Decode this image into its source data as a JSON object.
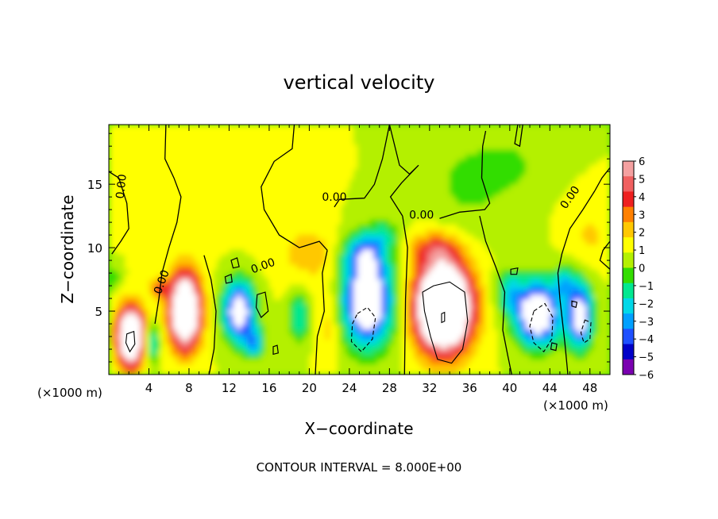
{
  "chart_data": {
    "type": "heatmap",
    "title": "vertical velocity",
    "xlabel": "X−coordinate",
    "ylabel": "Z−coordinate",
    "x_unit_left": "(×1000 m)",
    "x_unit_right": "(×1000 m)",
    "footer": "CONTOUR INTERVAL = 8.000E+00",
    "x_range": [
      0,
      50
    ],
    "y_range": [
      0,
      19.7
    ],
    "x_ticks": [
      4,
      8,
      12,
      16,
      20,
      24,
      28,
      32,
      36,
      40,
      44,
      48
    ],
    "y_ticks": [
      5,
      10,
      15
    ],
    "colorbar": {
      "levels": [
        6,
        5,
        4,
        3,
        2,
        1,
        0,
        -1,
        -2,
        -3,
        -4,
        -5,
        -6
      ],
      "labels": [
        "6",
        "5",
        "4",
        "3",
        "2",
        "1",
        "0",
        "−1",
        "−2",
        "−3",
        "−4",
        "−5",
        "−6"
      ],
      "colors": [
        "#f4a0a0",
        "#f06060",
        "#ee2020",
        "#ff8000",
        "#ffc800",
        "#ffff00",
        "#b4f000",
        "#33dd00",
        "#00e890",
        "#00d8e8",
        "#00a0ff",
        "#1e50ff",
        "#0000c8",
        "#7a00b0"
      ]
    },
    "field_features": [
      {
        "x": 2.2,
        "z": 3.0,
        "peak": 12.0
      },
      {
        "x": 7.6,
        "z": 5.0,
        "peak": 12.0
      },
      {
        "x": 13.0,
        "z": 5.0,
        "peak": -8.0
      },
      {
        "x": 25.8,
        "z": 5.8,
        "peak": -9.0
      },
      {
        "x": 33.4,
        "z": 5.3,
        "peak": 16.0
      },
      {
        "x": 42.8,
        "z": 4.8,
        "peak": -9.0
      },
      {
        "x": 47.0,
        "z": 4.6,
        "peak": -8.0
      }
    ],
    "contour_labels": [
      {
        "text": "0.00",
        "x": 1.6,
        "z": 14.8,
        "rot": -84
      },
      {
        "text": "0.00",
        "x": 5.6,
        "z": 7.2,
        "rot": -70
      },
      {
        "text": "0.00",
        "x": 15.5,
        "z": 8.3,
        "rot": -20
      },
      {
        "text": "0.00",
        "x": 22.5,
        "z": 13.7,
        "rot": 0
      },
      {
        "text": "0.00",
        "x": 31.2,
        "z": 12.3,
        "rot": 0
      },
      {
        "text": "0.00",
        "x": 46.3,
        "z": 13.8,
        "rot": -55
      }
    ]
  }
}
